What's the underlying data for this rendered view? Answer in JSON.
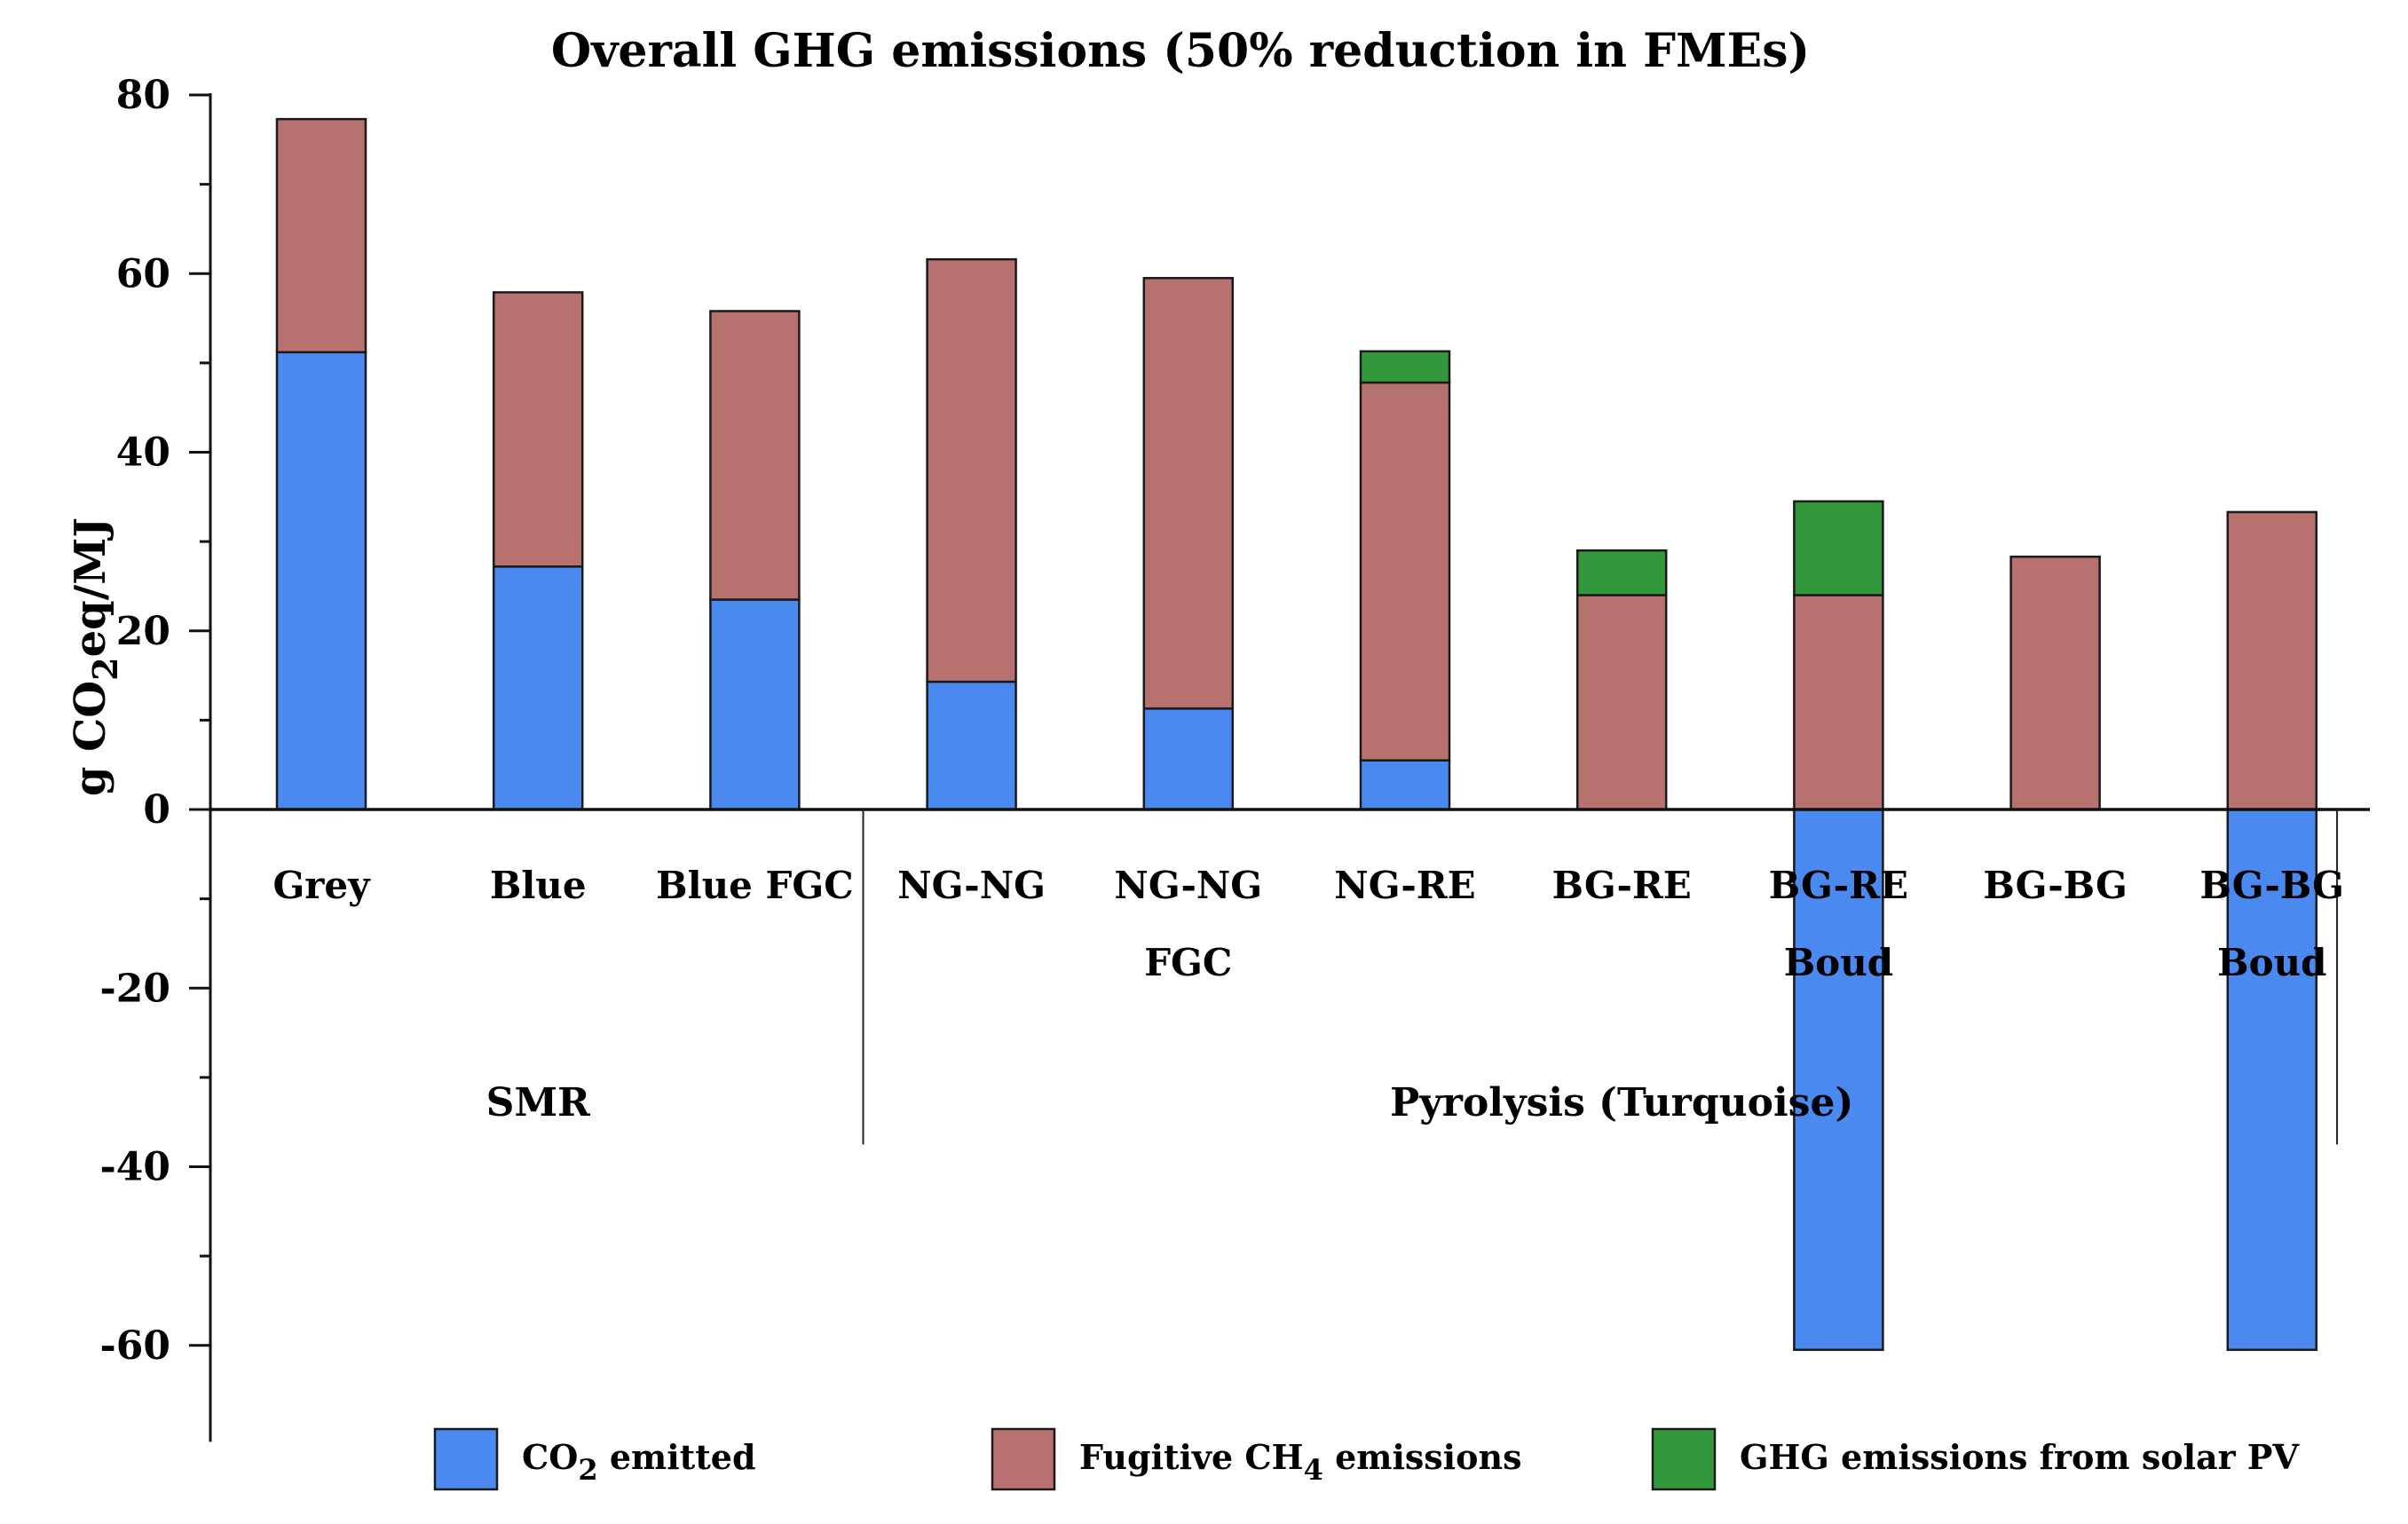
{
  "chart_data": {
    "type": "bar",
    "stacked": true,
    "title": "Overall GHG emissions (50% reduction in FMEs)",
    "ylabel": "g CO2eq/MJ",
    "ylim": [
      -70,
      80
    ],
    "yticks": [
      80,
      60,
      40,
      20,
      0,
      -20,
      -40,
      -60
    ],
    "categories": [
      [
        "Grey"
      ],
      [
        "Blue"
      ],
      [
        "Blue FGC"
      ],
      [
        "NG-NG"
      ],
      [
        "NG-NG",
        "FGC"
      ],
      [
        "NG-RE"
      ],
      [
        "BG-RE"
      ],
      [
        "BG-RE",
        "Boud"
      ],
      [
        "BG-BG"
      ],
      [
        "BG-BG",
        "Boud"
      ]
    ],
    "groups": [
      {
        "label": "SMR",
        "start": 0,
        "end": 2
      },
      {
        "label": "Pyrolysis (Turquoise)",
        "start": 3,
        "end": 9
      }
    ],
    "series": [
      {
        "name": "CO2 emitted",
        "color": "#4a89ef",
        "values": [
          51.2,
          27.2,
          23.5,
          14.3,
          11.3,
          5.5,
          0,
          -60.5,
          0,
          -60.5
        ]
      },
      {
        "name": "Fugitive CH4 emissions",
        "color": "#b7726f",
        "values": [
          26.1,
          30.7,
          32.3,
          47.3,
          48.2,
          42.3,
          24.0,
          24.0,
          28.3,
          33.3
        ]
      },
      {
        "name": "GHG emissions from solar PV",
        "color": "#33983b",
        "values": [
          0,
          0,
          0,
          0,
          0,
          3.5,
          5.0,
          10.5,
          0,
          0
        ]
      }
    ],
    "legend": {
      "position": "bottom",
      "items": [
        {
          "prefix": "CO",
          "sub": "2",
          "suffix": " emitted"
        },
        {
          "prefix": "Fugitive CH",
          "sub": "4",
          "suffix": " emissions"
        },
        {
          "prefix": "GHG emissions from solar PV",
          "sub": "",
          "suffix": ""
        }
      ]
    },
    "ylabel_parts": {
      "prefix": "g CO",
      "sub": "2",
      "suffix": "eq/MJ"
    }
  }
}
